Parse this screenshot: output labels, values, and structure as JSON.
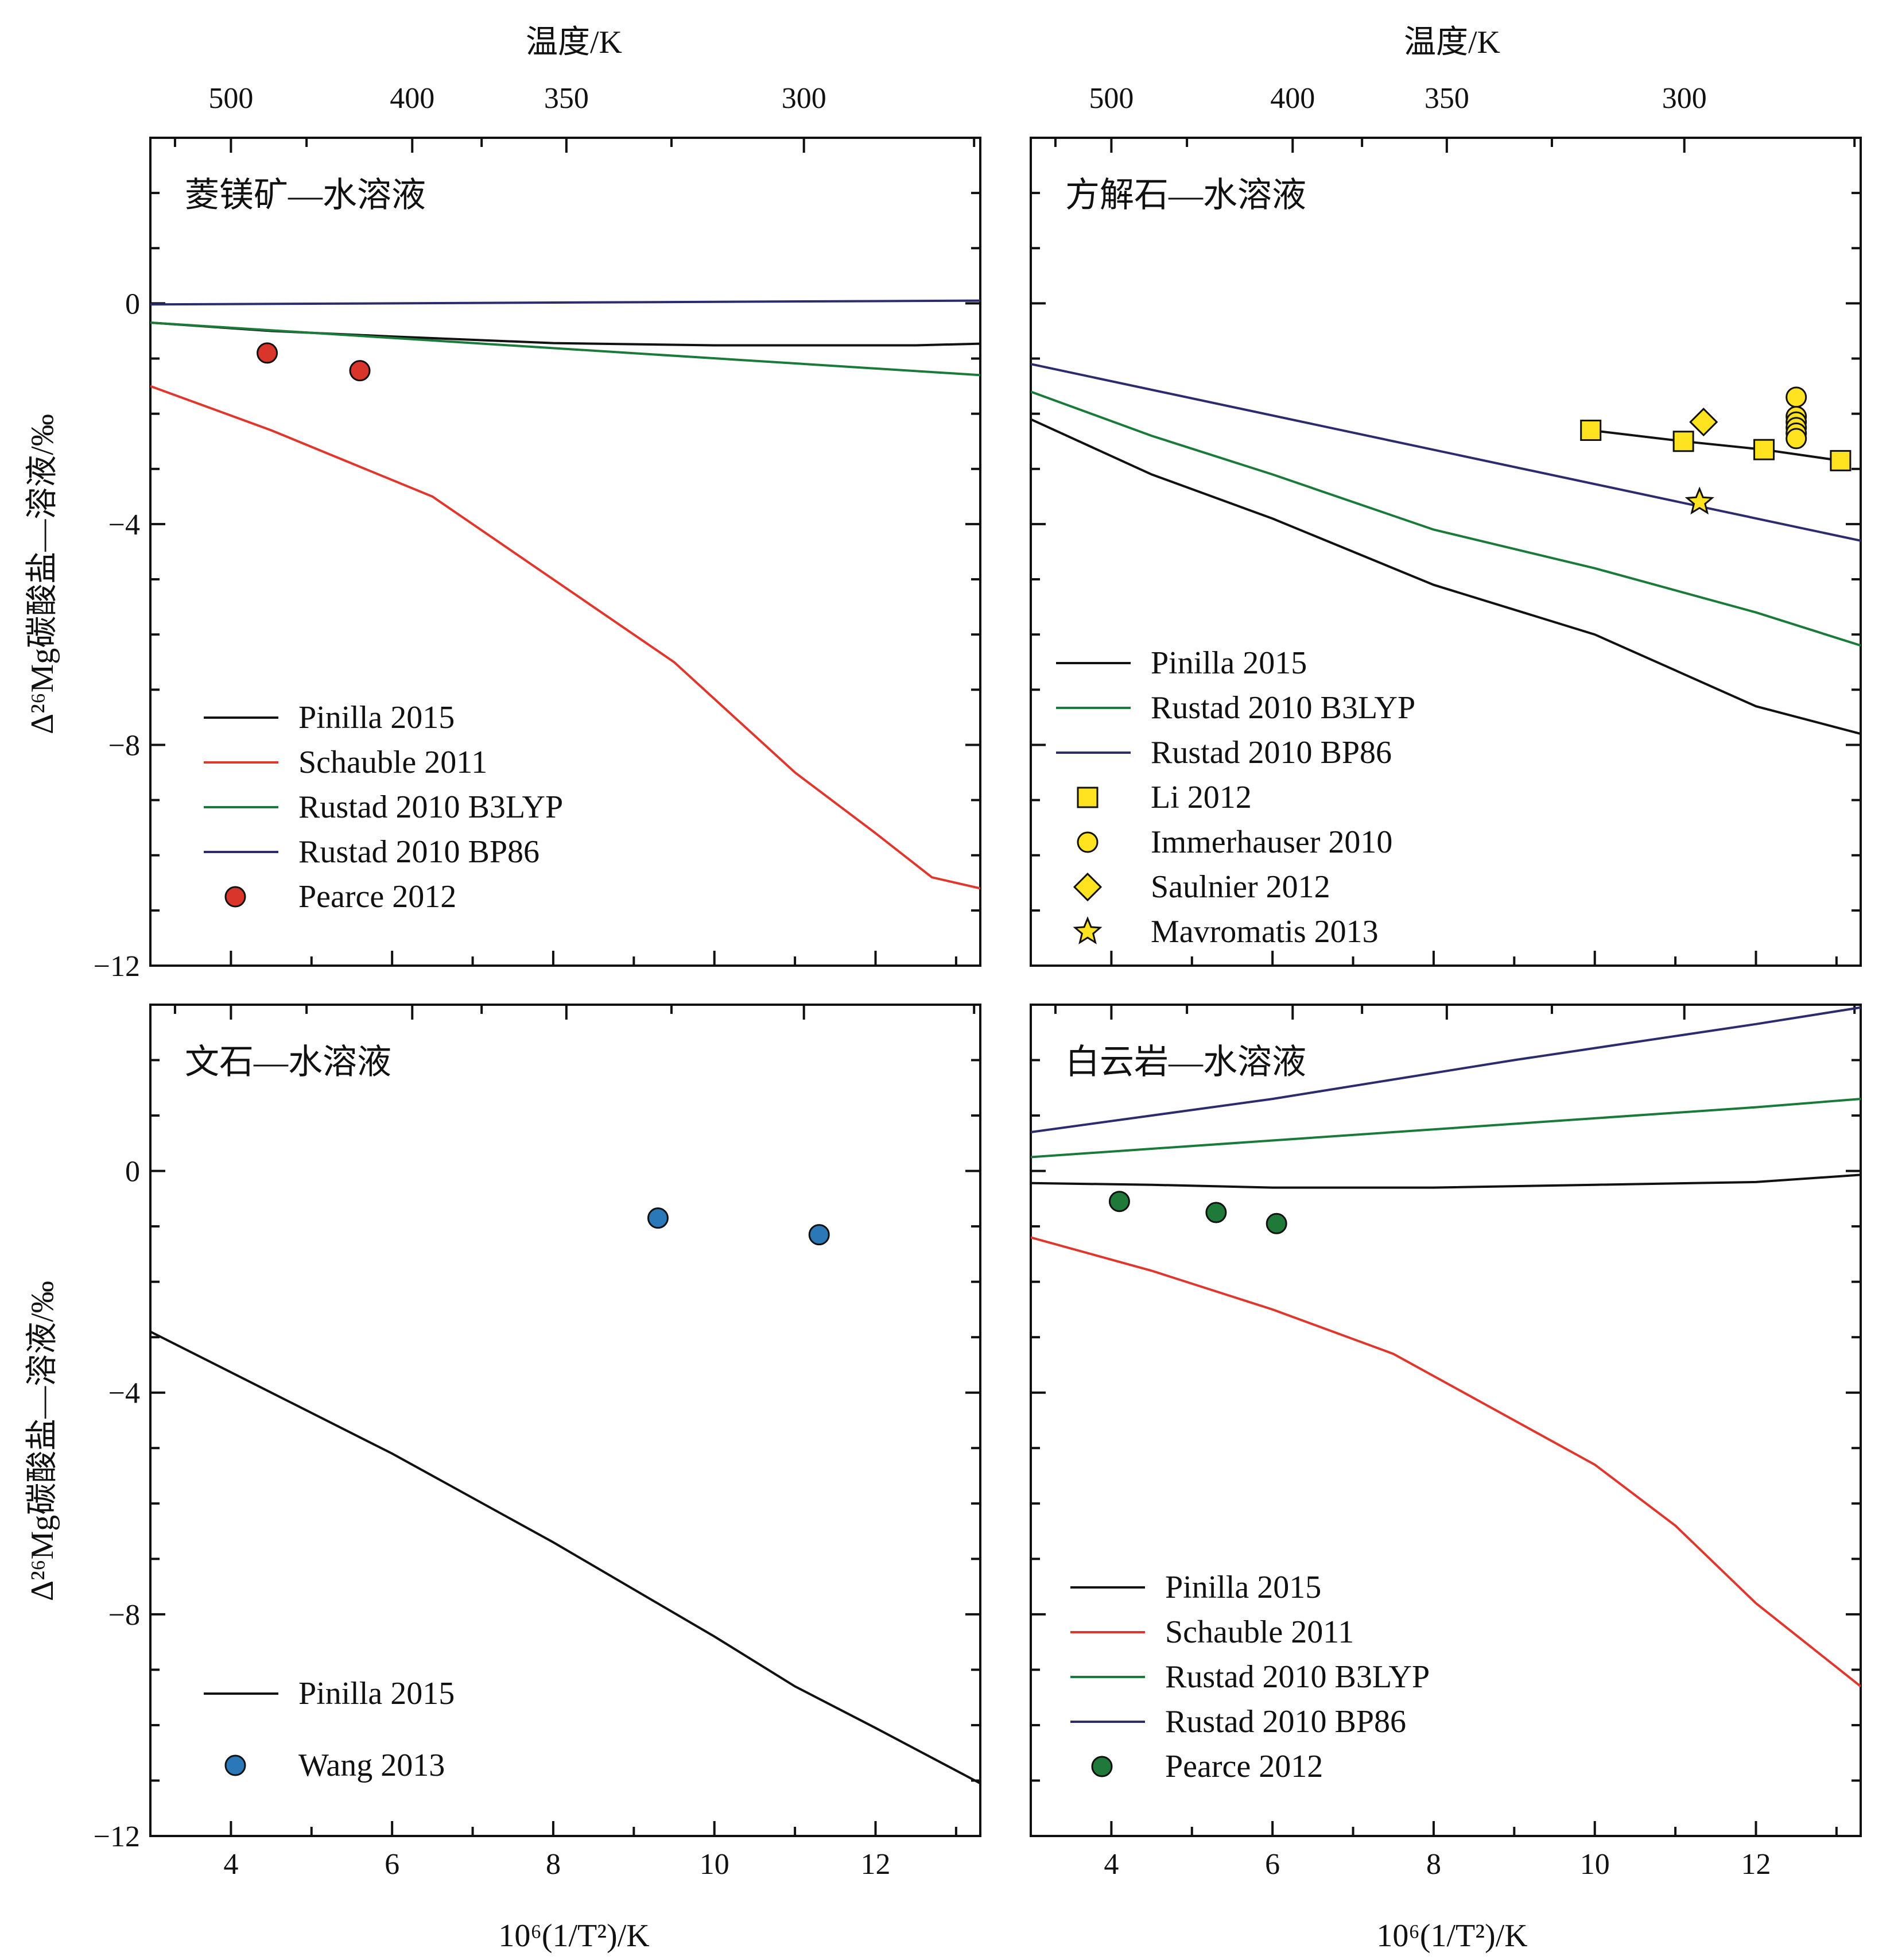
{
  "figure": {
    "top_axis_title": "温度/K",
    "bottom_axis_title": "10⁶(1/T²)/K",
    "y_axis_title": "Δ²⁶Mg碳酸盐—溶液/‰",
    "top_tick_labels": [
      "500",
      "400",
      "350",
      "300"
    ],
    "top_tick_temps": [
      500,
      400,
      350,
      300
    ],
    "bottom_tick_labels": [
      "4",
      "6",
      "8",
      "10",
      "12"
    ],
    "y_tick_labels": [
      "0",
      "−4",
      "−8",
      "−12"
    ]
  },
  "colors": {
    "pinilla": "#111111",
    "schauble": "#e0362b",
    "b3lyp": "#1a7a3a",
    "bp86": "#2b2c6e",
    "pearce_red": "#d9352b",
    "pearce_green": "#1f7a3a",
    "yellow": "#ffe321",
    "wang": "#2b78b8"
  },
  "chart_data": [
    {
      "id": "magnesite",
      "type": "line",
      "title": "菱镁矿—水溶液",
      "xlim": [
        3.0,
        13.3
      ],
      "ylim": [
        -12,
        3
      ],
      "series": [
        {
          "name": "Pinilla 2015",
          "kind": "line",
          "color": "pinilla",
          "x": [
            3.0,
            4.5,
            6.0,
            8.0,
            10.0,
            12.5,
            13.3
          ],
          "y": [
            -0.35,
            -0.5,
            -0.6,
            -0.72,
            -0.76,
            -0.76,
            -0.73
          ]
        },
        {
          "name": "Schauble 2011",
          "kind": "line",
          "color": "schauble",
          "x": [
            3.0,
            4.5,
            6.5,
            8.0,
            9.5,
            11.0,
            12.0,
            12.7,
            13.3
          ],
          "y": [
            -1.5,
            -2.3,
            -3.5,
            -5.0,
            -6.5,
            -8.5,
            -9.6,
            -10.4,
            -10.6
          ]
        },
        {
          "name": "Rustad 2010 B3LYP",
          "kind": "line",
          "color": "b3lyp",
          "x": [
            3.0,
            13.3
          ],
          "y": [
            -0.35,
            -1.3
          ]
        },
        {
          "name": "Rustad 2010 BP86",
          "kind": "line",
          "color": "bp86",
          "x": [
            3.0,
            13.3
          ],
          "y": [
            -0.02,
            0.05
          ]
        },
        {
          "name": "Pearce 2012",
          "kind": "points",
          "marker": "circle",
          "color": "pearce_red",
          "x": [
            4.45,
            5.6
          ],
          "y": [
            -0.9,
            -1.22
          ]
        }
      ],
      "legend_order": [
        "Pinilla 2015",
        "Schauble 2011",
        "Rustad 2010 B3LYP",
        "Rustad 2010 BP86",
        "Pearce 2012"
      ]
    },
    {
      "id": "calcite",
      "type": "line",
      "title": "方解石—水溶液",
      "xlim": [
        3.0,
        13.3
      ],
      "ylim": [
        -12,
        3
      ],
      "series": [
        {
          "name": "Pinilla 2015",
          "kind": "line",
          "color": "pinilla",
          "x": [
            3.0,
            4.5,
            6.0,
            8.0,
            10.0,
            12.0,
            13.3
          ],
          "y": [
            -2.1,
            -3.1,
            -3.9,
            -5.1,
            -6.0,
            -7.3,
            -7.8
          ]
        },
        {
          "name": "Rustad 2010 B3LYP",
          "kind": "line",
          "color": "b3lyp",
          "x": [
            3.0,
            4.5,
            6.0,
            8.0,
            10.0,
            12.0,
            13.3
          ],
          "y": [
            -1.6,
            -2.4,
            -3.1,
            -4.1,
            -4.8,
            -5.6,
            -6.2
          ]
        },
        {
          "name": "Rustad 2010 BP86",
          "kind": "line",
          "color": "bp86",
          "x": [
            3.0,
            13.3
          ],
          "y": [
            -1.1,
            -4.3
          ]
        },
        {
          "name": "Li 2012",
          "kind": "points-line",
          "marker": "square",
          "color": "yellow",
          "x": [
            9.95,
            11.1,
            12.1,
            13.05
          ],
          "y": [
            -2.3,
            -2.5,
            -2.65,
            -2.85
          ]
        },
        {
          "name": "Immerhauser 2010",
          "kind": "points",
          "marker": "circle",
          "color": "yellow",
          "x": [
            12.5,
            12.5,
            12.5,
            12.5,
            12.5,
            12.5
          ],
          "y": [
            -1.7,
            -2.05,
            -2.15,
            -2.25,
            -2.35,
            -2.45
          ]
        },
        {
          "name": "Saulnier 2012",
          "kind": "points",
          "marker": "diamond",
          "color": "yellow",
          "x": [
            11.35
          ],
          "y": [
            -2.15
          ]
        },
        {
          "name": "Mavromatis 2013",
          "kind": "points",
          "marker": "star",
          "color": "yellow",
          "x": [
            11.3
          ],
          "y": [
            -3.6
          ]
        }
      ],
      "legend_order": [
        "Pinilla 2015",
        "Rustad 2010 B3LYP",
        "Rustad 2010 BP86",
        "Li 2012",
        "Immerhauser 2010",
        "Saulnier 2012",
        "Mavromatis 2013"
      ]
    },
    {
      "id": "aragonite",
      "type": "line",
      "title": "文石—水溶液",
      "xlim": [
        3.0,
        13.3
      ],
      "ylim": [
        -12,
        3
      ],
      "series": [
        {
          "name": "Pinilla 2015",
          "kind": "line",
          "color": "pinilla",
          "x": [
            3.0,
            4.5,
            6.0,
            8.0,
            10.0,
            11.0,
            12.0,
            13.3
          ],
          "y": [
            -2.9,
            -4.0,
            -5.1,
            -6.7,
            -8.4,
            -9.3,
            -10.05,
            -11.05
          ]
        },
        {
          "name": "Wang 2013",
          "kind": "points",
          "marker": "circle",
          "color": "wang",
          "x": [
            9.3,
            11.3
          ],
          "y": [
            -0.85,
            -1.15
          ]
        }
      ],
      "legend_order": [
        "Pinilla 2015",
        "Wang 2013"
      ]
    },
    {
      "id": "dolomite",
      "type": "line",
      "title": "白云岩—水溶液",
      "xlim": [
        3.0,
        13.3
      ],
      "ylim": [
        -12,
        3
      ],
      "series": [
        {
          "name": "Pinilla 2015",
          "kind": "line",
          "color": "pinilla",
          "x": [
            3.0,
            4.5,
            6.0,
            8.0,
            10.0,
            12.0,
            13.3
          ],
          "y": [
            -0.22,
            -0.25,
            -0.3,
            -0.3,
            -0.25,
            -0.2,
            -0.07
          ]
        },
        {
          "name": "Schauble 2011",
          "kind": "line",
          "color": "schauble",
          "x": [
            3.0,
            4.5,
            6.0,
            7.5,
            9.0,
            10.0,
            11.0,
            12.0,
            13.3
          ],
          "y": [
            -1.2,
            -1.8,
            -2.5,
            -3.3,
            -4.5,
            -5.3,
            -6.4,
            -7.8,
            -9.3
          ]
        },
        {
          "name": "Rustad 2010 B3LYP",
          "kind": "line",
          "color": "b3lyp",
          "x": [
            3.0,
            6.0,
            9.0,
            12.0,
            13.3
          ],
          "y": [
            0.25,
            0.55,
            0.85,
            1.15,
            1.3
          ]
        },
        {
          "name": "Rustad 2010 BP86",
          "kind": "line",
          "color": "bp86",
          "x": [
            3.0,
            6.0,
            9.0,
            12.0,
            13.3
          ],
          "y": [
            0.7,
            1.3,
            2.0,
            2.65,
            2.95
          ]
        },
        {
          "name": "Pearce 2012",
          "kind": "points",
          "marker": "circle",
          "color": "pearce_green",
          "x": [
            4.1,
            5.3,
            6.05
          ],
          "y": [
            -0.55,
            -0.75,
            -0.95
          ]
        }
      ],
      "legend_order": [
        "Pinilla 2015",
        "Schauble 2011",
        "Rustad 2010 B3LYP",
        "Rustad 2010 BP86",
        "Pearce 2012"
      ]
    }
  ]
}
